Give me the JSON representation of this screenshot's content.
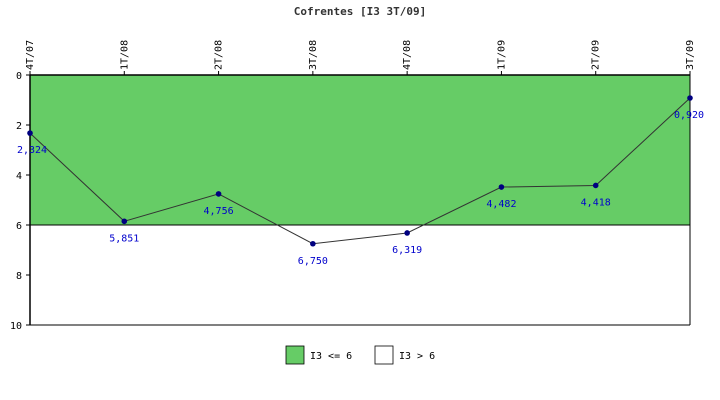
{
  "chart_data": {
    "type": "line",
    "title": "Cofrentes [I3 3T/09]",
    "categories": [
      "4T/07",
      "1T/08",
      "2T/08",
      "3T/08",
      "4T/08",
      "1T/09",
      "2T/09",
      "3T/09"
    ],
    "values": [
      2.324,
      5.851,
      4.756,
      6.75,
      6.319,
      4.482,
      4.418,
      0.92
    ],
    "value_labels": [
      "2,324",
      "5,851",
      "4,756",
      "6,750",
      "6,319",
      "4,482",
      "4,418",
      "0,920"
    ],
    "y_ticks": [
      "0",
      "2",
      "4",
      "6",
      "8",
      "10"
    ],
    "ylim": [
      0,
      10
    ],
    "y_inverted": true,
    "threshold": 6,
    "bands": [
      {
        "label": "I3 <= 6",
        "color": "#66cc66",
        "range": [
          0,
          6
        ]
      },
      {
        "label": "I3 > 6",
        "color": "#ffffff",
        "range": [
          6,
          10
        ]
      }
    ],
    "line_color": "#333333",
    "marker_color": "#000080",
    "label_color": "#0000cc",
    "grid": false,
    "legend_position": "bottom-center"
  }
}
